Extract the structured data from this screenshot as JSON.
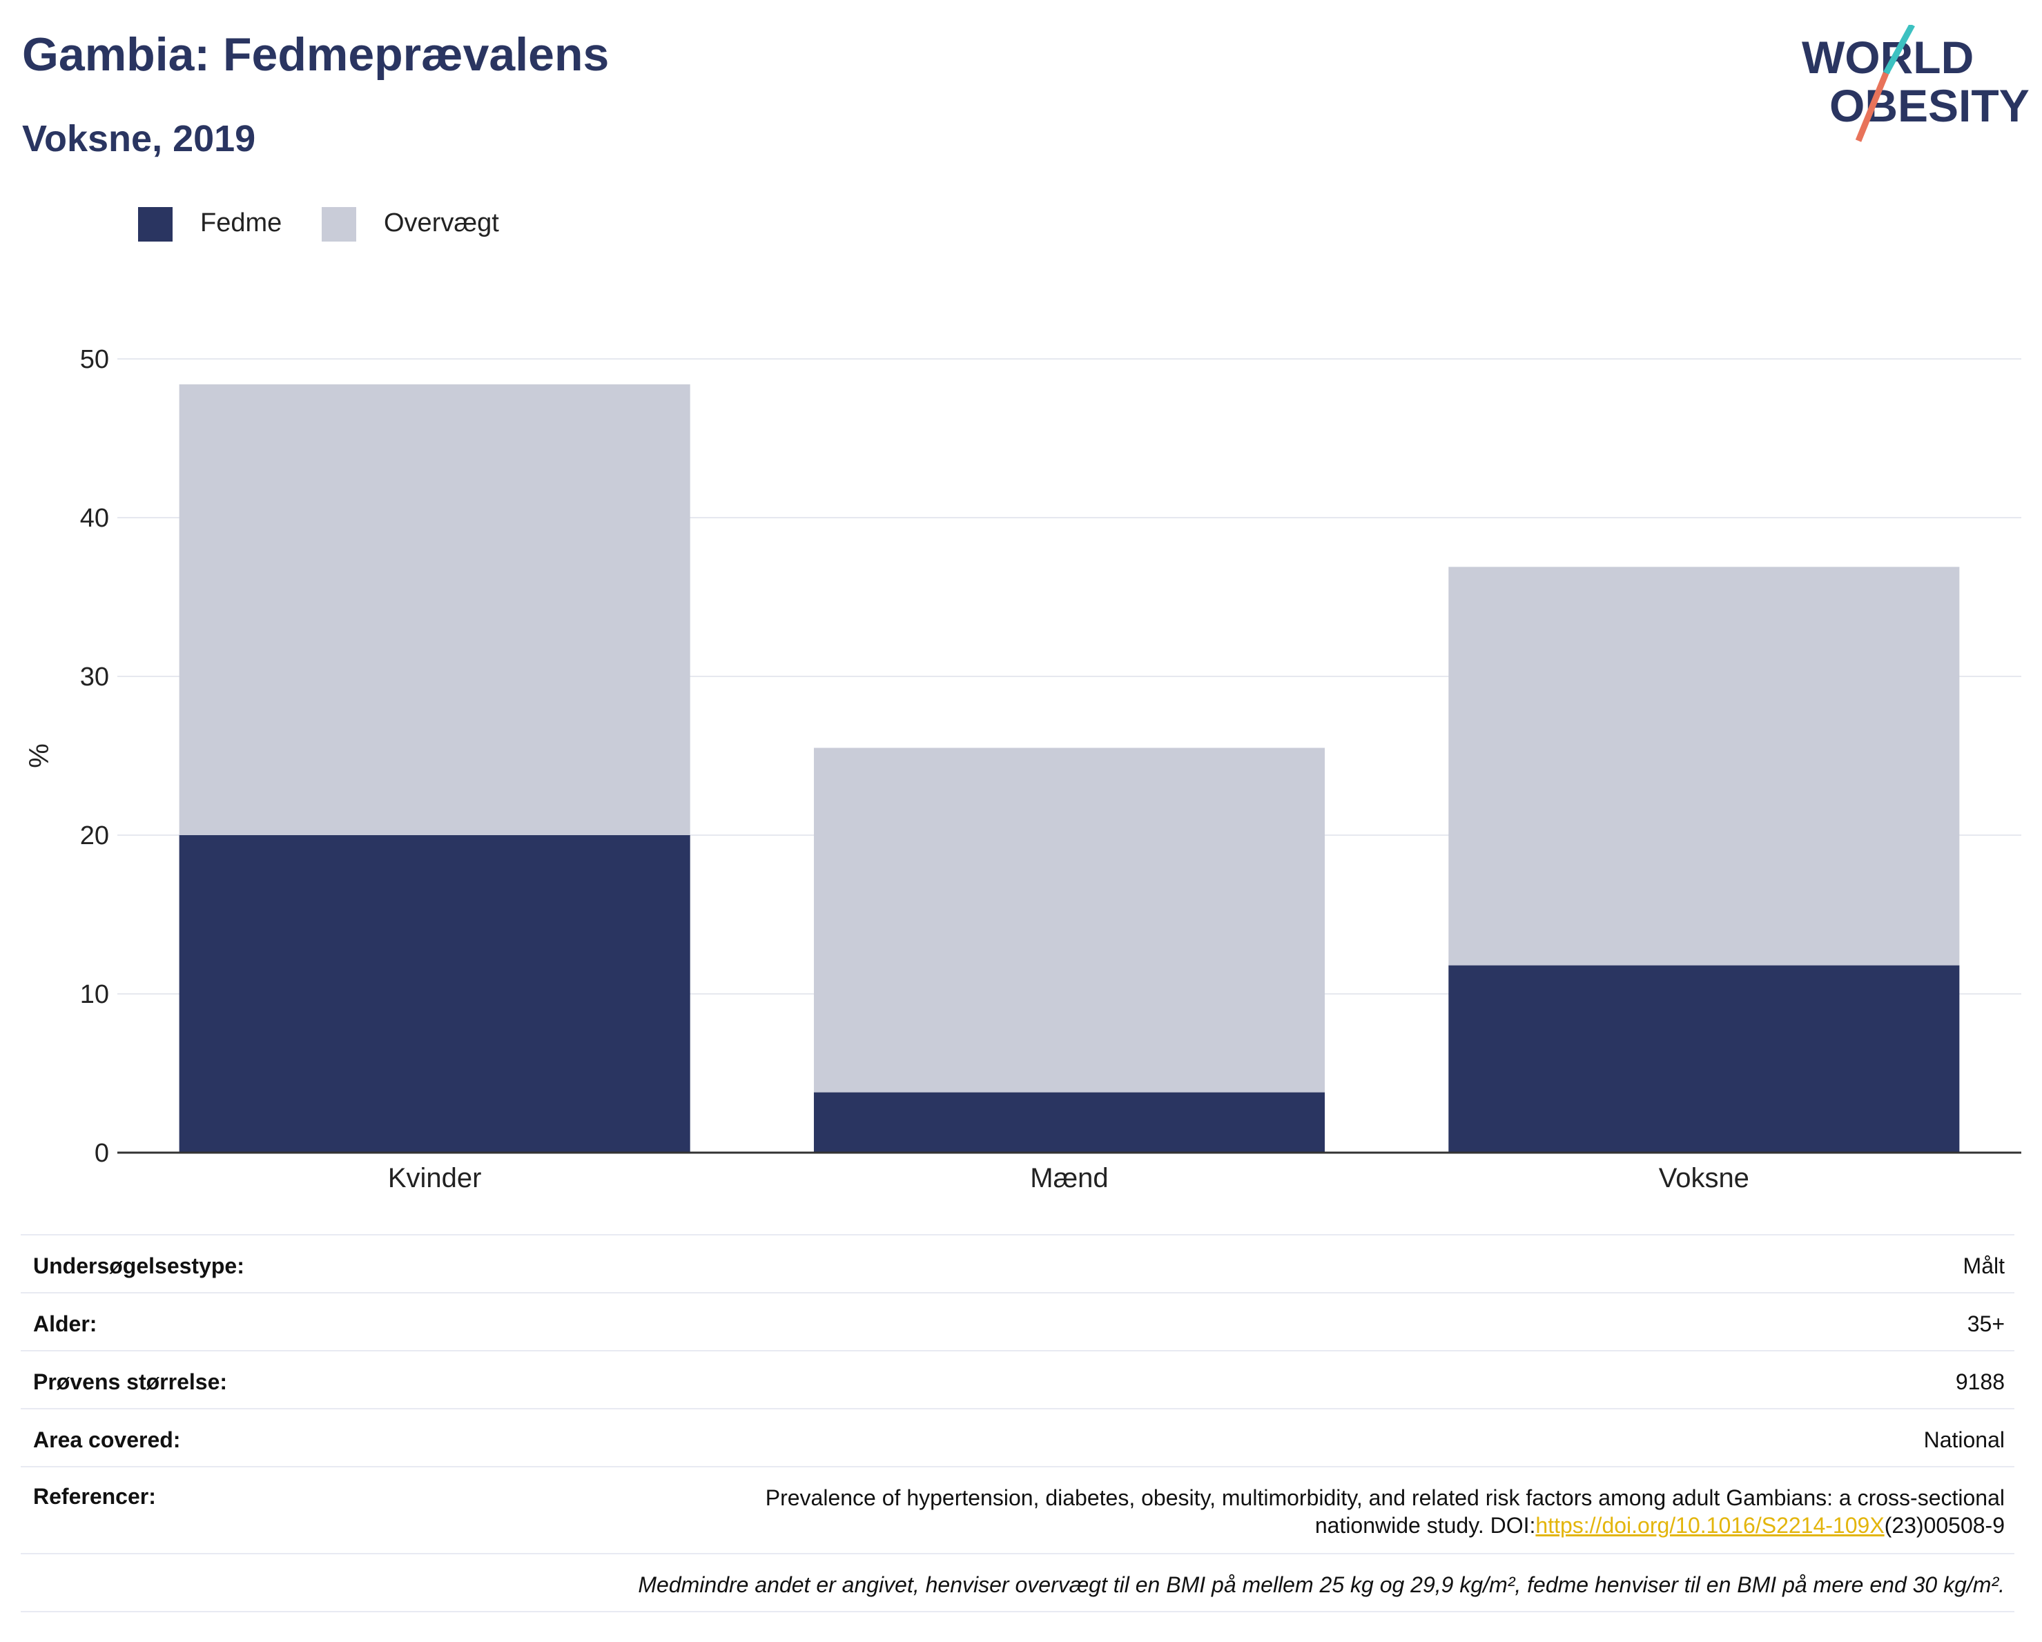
{
  "header": {
    "title": "Gambia: Fedmeprævalens",
    "subtitle": "Voksne, 2019",
    "logo_line1": "WORLD",
    "logo_line2": "OBESITY"
  },
  "colors": {
    "obesity": "#2a3561",
    "overweight": "#c9ccd8",
    "accent_teal": "#3cc1c1",
    "accent_coral": "#e8735a",
    "link": "#e3b50c"
  },
  "chart_data": {
    "type": "bar",
    "stacked": true,
    "categories": [
      "Kvinder",
      "Mænd",
      "Voksne"
    ],
    "series": [
      {
        "name": "Fedme",
        "values": [
          20.0,
          3.8,
          11.8
        ]
      },
      {
        "name": "Overvægt",
        "values": [
          28.4,
          21.7,
          25.1
        ]
      }
    ],
    "ylabel": "%",
    "ylim": [
      0,
      50
    ],
    "yticks": [
      0,
      10,
      20,
      30,
      40,
      50
    ],
    "grid": true,
    "legend_position": "top-left"
  },
  "info": {
    "rows": [
      {
        "key": "Undersøgelsestype:",
        "value": "Målt"
      },
      {
        "key": "Alder:",
        "value": "35+"
      },
      {
        "key": "Prøvens størrelse:",
        "value": "9188"
      },
      {
        "key": "Area covered:",
        "value": "National"
      }
    ],
    "reference_key": "Referencer:",
    "reference_line1": "Prevalence of hypertension, diabetes, obesity, multimorbidity, and related risk factors among adult Gambians: a cross-sectional",
    "reference_line2_prefix": "nationwide study. DOI:",
    "reference_link": "https://doi.org/10.1016/S2214-109X",
    "reference_line2_suffix": "(23)00508-9",
    "note": "Medmindre andet er angivet, henviser overvægt til en BMI på mellem 25 kg og 29,9 kg/m², fedme henviser til en BMI på mere end 30 kg/m²."
  }
}
